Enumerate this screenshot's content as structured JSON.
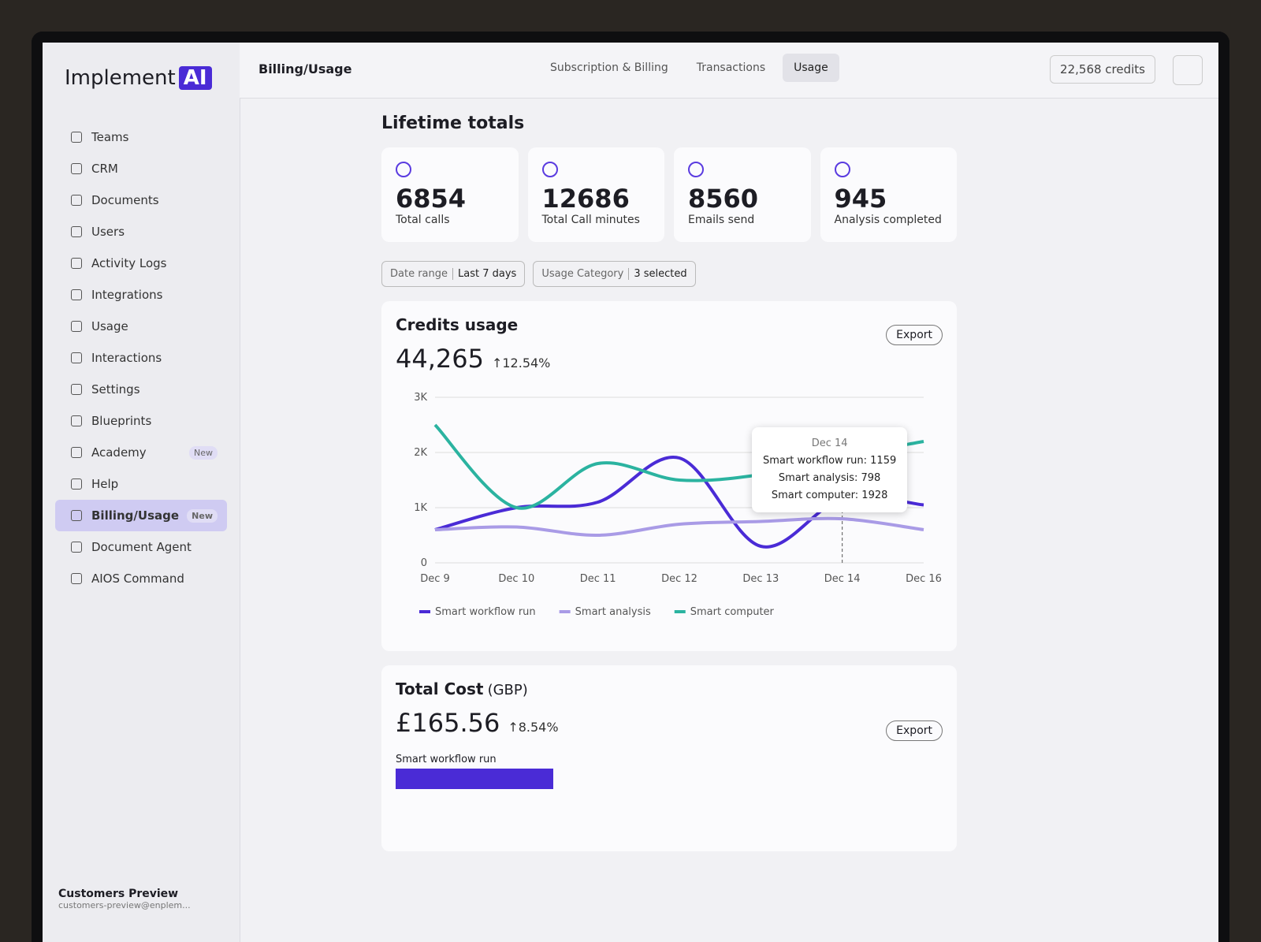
{
  "brand": {
    "name": "Implement",
    "logo": "AI"
  },
  "sidebar": {
    "items": [
      {
        "label": "Teams"
      },
      {
        "label": "CRM"
      },
      {
        "label": "Documents"
      },
      {
        "label": "Users"
      },
      {
        "label": "Activity Logs"
      },
      {
        "label": "Integrations"
      },
      {
        "label": "Usage"
      },
      {
        "label": "Interactions"
      },
      {
        "label": "Settings"
      },
      {
        "label": "Blueprints"
      },
      {
        "label": "Academy",
        "badge": "New"
      },
      {
        "label": "Help"
      },
      {
        "label": "Billing/Usage",
        "badge": "New",
        "active": true
      },
      {
        "label": "Document Agent"
      },
      {
        "label": "AIOS Command"
      }
    ],
    "user": {
      "name": "Customers Preview",
      "email": "customers-preview@enplem..."
    }
  },
  "header": {
    "breadcrumb": "Billing/Usage",
    "tabs": [
      {
        "label": "Subscription & Billing"
      },
      {
        "label": "Transactions"
      },
      {
        "label": "Usage",
        "active": true
      }
    ],
    "credits": "22,568 credits"
  },
  "lifetime": {
    "title": "Lifetime totals",
    "cards": [
      {
        "value": 6854,
        "label": "Total calls"
      },
      {
        "value": 12686,
        "label": "Total Call minutes"
      },
      {
        "value": 8560,
        "label": "Emails send"
      },
      {
        "value": 945,
        "label": "Analysis completed"
      }
    ]
  },
  "filters": [
    {
      "label": "Date range",
      "value": "Last 7 days"
    },
    {
      "label": "Usage Category",
      "value": "3 selected"
    }
  ],
  "chart_data": {
    "type": "line",
    "title": "Credits usage",
    "total": "44,265",
    "change": "↑12.54%",
    "export": "Export",
    "categories": [
      "Dec 9",
      "Dec 10",
      "Dec 11",
      "Dec 12",
      "Dec 13",
      "Dec 14",
      "Dec 16"
    ],
    "ylim": [
      0,
      3000
    ],
    "yticks": [
      0,
      {
        "value": 1000,
        "label": "1K"
      },
      {
        "value": 2000,
        "label": "2K"
      },
      {
        "value": 3000,
        "label": "3K"
      }
    ],
    "grid": true,
    "series": [
      {
        "name": "Smart workflow run",
        "color": "#4a2bd6",
        "values": [
          600,
          1000,
          1100,
          1900,
          300,
          1159,
          1050
        ]
      },
      {
        "name": "Smart analysis",
        "color": "#a99be6",
        "values": [
          600,
          650,
          500,
          700,
          750,
          798,
          600
        ]
      },
      {
        "name": "Smart computer",
        "color": "#2bb3a0",
        "values": [
          2500,
          1000,
          1800,
          1500,
          1600,
          1928,
          2200
        ]
      }
    ],
    "tooltip": {
      "title": "Dec 14",
      "lines": [
        "Smart workflow run: 1159",
        "Smart analysis: 798",
        "Smart computer: 1928"
      ]
    }
  },
  "cost": {
    "title": "Total Cost",
    "unit": "(GBP)",
    "total": "£165.56",
    "change": "↑8.54%",
    "export": "Export",
    "bar_label": "Smart workflow run"
  }
}
